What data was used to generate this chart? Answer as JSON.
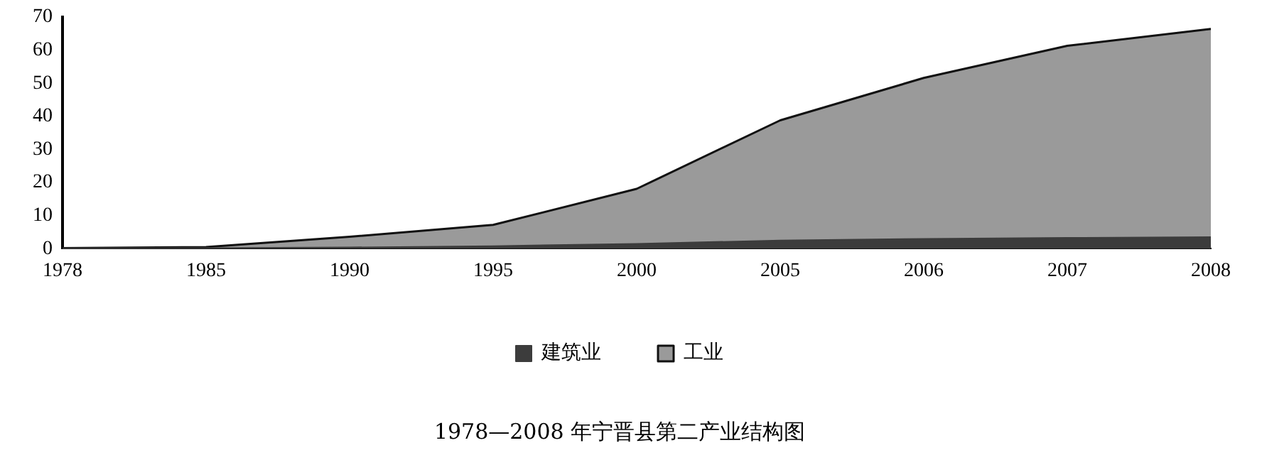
{
  "chart_data": {
    "type": "area",
    "stacked": true,
    "title": "1978—2008 年宁晋县第二产业结构图",
    "categories": [
      "1978",
      "1985",
      "1990",
      "1995",
      "2000",
      "2005",
      "2006",
      "2007",
      "2008"
    ],
    "series": [
      {
        "name": "建筑业",
        "color": "#3c3c3c",
        "values": [
          0.1,
          0.2,
          0.4,
          0.8,
          1.5,
          2.5,
          3,
          3.3,
          3.5
        ]
      },
      {
        "name": "工业",
        "color": "#9a9a9a",
        "values": [
          0.1,
          0.3,
          3.2,
          6.4,
          16.6,
          36.3,
          48.6,
          58,
          62.9
        ]
      }
    ],
    "ylim": [
      0,
      70
    ],
    "yticks": [
      0,
      10,
      20,
      30,
      40,
      50,
      60,
      70
    ],
    "grid": false,
    "legend": "bottom"
  }
}
